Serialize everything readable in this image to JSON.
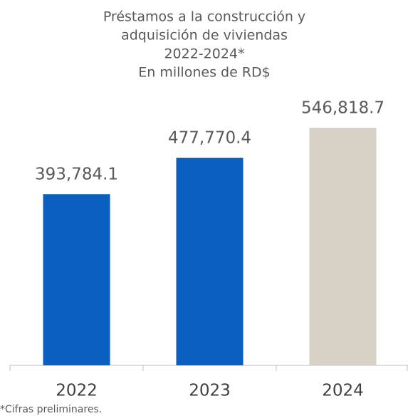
{
  "chart_data": {
    "type": "bar",
    "title": [
      "Préstamos a la construcción y",
      "adquisición de viviendas",
      "2022-2024*",
      "En millones de RD$"
    ],
    "categories": [
      "2022",
      "2023",
      "2024"
    ],
    "values": [
      393784.1,
      477770.4,
      546818.7
    ],
    "value_labels": [
      "393,784.1",
      "477,770.4",
      "546,818.7"
    ],
    "colors": [
      "#0a5fc0",
      "#0a5fc0",
      "#d8d1c6"
    ],
    "footnote": "*Cifras preliminares."
  }
}
